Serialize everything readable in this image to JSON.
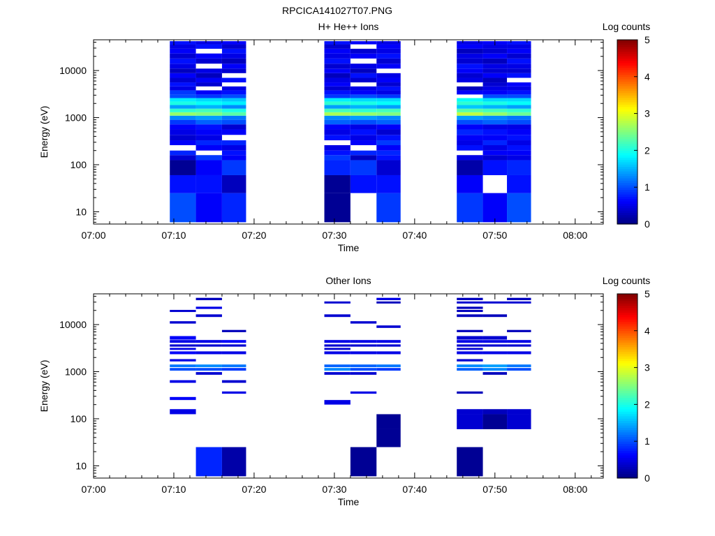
{
  "figure_title": "RPCICA141027T07.PNG",
  "chart_data": [
    {
      "type": "heatmap",
      "title": "H+ He++ Ions",
      "xlabel": "Time",
      "ylabel": "Energy (eV)",
      "y_scale": "log",
      "ylim": [
        5.5,
        45000
      ],
      "xlim": [
        "07:00",
        "08:03"
      ],
      "xlim_minutes": [
        0,
        63.5
      ],
      "x_ticks": [
        "07:00",
        "07:10",
        "07:20",
        "07:30",
        "07:40",
        "07:50",
        "08:00"
      ],
      "y_ticks": [
        "10",
        "100",
        "1000",
        "10000"
      ],
      "colorbar": {
        "label": "Log counts",
        "range": [
          0,
          5
        ],
        "ticks": [
          "0",
          "1",
          "2",
          "3",
          "4",
          "5"
        ],
        "colormap": "jet"
      },
      "time_columns": [
        {
          "start": "07:09:30",
          "end": "07:12:45"
        },
        {
          "start": "07:12:45",
          "end": "07:16:00"
        },
        {
          "start": "07:16:00",
          "end": "07:19:00"
        },
        {
          "start": "07:28:45",
          "end": "07:32:00"
        },
        {
          "start": "07:32:00",
          "end": "07:35:15"
        },
        {
          "start": "07:35:15",
          "end": "07:38:15"
        },
        {
          "start": "07:45:15",
          "end": "07:48:30"
        },
        {
          "start": "07:48:30",
          "end": "07:51:30"
        },
        {
          "start": "07:51:30",
          "end": "07:54:30"
        }
      ],
      "energy_bins_eV": [
        6.0,
        25.0,
        60.0,
        125.0,
        160.0,
        200.0,
        260.0,
        330.0,
        430.0,
        560.0,
        720.0,
        900.0,
        1100.0,
        1300.0,
        1550.0,
        1850.0,
        2200.0,
        2600.0,
        3100.0,
        3800.0,
        4600.0,
        5600.0,
        7000.0,
        8800.0,
        11000.0,
        14000.0,
        18000.0,
        23000.0,
        29000.0,
        36000.0,
        42000.0
      ],
      "log_counts": [
        [
          1.0,
          0.7,
          0.1,
          0.4,
          0.8,
          null,
          0.6,
          0.4,
          0.5,
          0.6,
          0.9,
          1.3,
          2.6,
          2.1,
          1.4,
          2.0,
          1.8,
          1.0,
          0.9,
          0.5,
          0.7,
          0.4,
          0.6,
          0.3,
          0.5,
          0.7,
          0.4,
          0.6,
          0.5,
          0.7
        ],
        [
          0.6,
          0.7,
          0.6,
          0.9,
          null,
          0.6,
          0.8,
          0.5,
          0.6,
          0.7,
          1.1,
          1.4,
          2.5,
          2.2,
          1.5,
          1.9,
          1.7,
          0.9,
          0.6,
          null,
          0.4,
          0.6,
          0.3,
          0.5,
          null,
          0.4,
          0.6,
          null,
          0.7,
          0.5
        ],
        [
          0.8,
          0.3,
          0.9,
          0.6,
          0.7,
          0.5,
          0.8,
          null,
          0.6,
          0.4,
          1.0,
          1.2,
          2.3,
          2.0,
          1.3,
          1.8,
          1.6,
          1.0,
          0.7,
          0.5,
          null,
          0.7,
          null,
          0.4,
          0.6,
          0.3,
          0.5,
          0.7,
          0.4,
          0.6
        ],
        [
          0.1,
          0.1,
          0.8,
          0.9,
          0.7,
          0.5,
          null,
          0.7,
          0.5,
          0.6,
          1.1,
          1.3,
          2.7,
          2.2,
          1.4,
          2.1,
          1.8,
          0.9,
          0.7,
          0.4,
          0.6,
          0.5,
          0.3,
          0.6,
          0.4,
          0.7,
          0.5,
          0.6,
          0.4,
          0.7
        ],
        [
          null,
          0.7,
          0.9,
          0.3,
          0.8,
          null,
          0.6,
          0.5,
          0.7,
          0.5,
          1.0,
          1.4,
          2.6,
          2.1,
          1.5,
          2.0,
          1.7,
          1.0,
          0.6,
          0.5,
          null,
          0.4,
          0.7,
          0.3,
          0.5,
          null,
          0.6,
          0.4,
          null,
          0.6
        ],
        [
          0.9,
          0.7,
          0.4,
          0.7,
          0.8,
          0.6,
          0.9,
          0.7,
          0.4,
          0.6,
          1.1,
          1.3,
          2.5,
          2.2,
          1.4,
          1.9,
          1.7,
          0.9,
          0.5,
          0.7,
          0.4,
          0.6,
          0.5,
          null,
          0.6,
          0.4,
          0.7,
          0.5,
          0.6,
          0.5
        ],
        [
          0.9,
          0.6,
          0.2,
          0.5,
          null,
          0.7,
          0.5,
          0.6,
          0.8,
          0.6,
          1.0,
          1.4,
          2.8,
          2.3,
          1.6,
          2.1,
          1.9,
          null,
          0.6,
          0.3,
          null,
          0.5,
          0.4,
          0.6,
          0.7,
          0.4,
          0.5,
          0.3,
          0.6,
          0.5
        ],
        [
          0.6,
          null,
          0.7,
          0.4,
          0.6,
          0.5,
          0.8,
          0.6,
          0.7,
          0.5,
          1.1,
          1.3,
          2.6,
          2.2,
          1.5,
          2.0,
          1.7,
          1.0,
          0.6,
          0.5,
          0.4,
          0.3,
          0.6,
          0.4,
          0.5,
          0.3,
          0.6,
          0.4,
          0.5,
          0.6
        ],
        [
          1.0,
          0.7,
          0.8,
          0.5,
          0.6,
          0.7,
          0.5,
          0.7,
          0.6,
          0.5,
          1.0,
          1.2,
          2.4,
          2.1,
          1.4,
          1.9,
          1.7,
          1.0,
          0.7,
          0.5,
          0.6,
          null,
          0.7,
          0.4,
          0.5,
          0.7,
          0.4,
          0.6,
          0.5,
          0.7
        ]
      ]
    },
    {
      "type": "heatmap",
      "title": "Other Ions",
      "xlabel": "Time",
      "ylabel": "Energy (eV)",
      "y_scale": "log",
      "ylim": [
        5.5,
        45000
      ],
      "xlim": [
        "07:00",
        "08:03"
      ],
      "xlim_minutes": [
        0,
        63.5
      ],
      "x_ticks": [
        "07:00",
        "07:10",
        "07:20",
        "07:30",
        "07:40",
        "07:50",
        "08:00"
      ],
      "y_ticks": [
        "10",
        "100",
        "1000",
        "10000"
      ],
      "colorbar": {
        "label": "Log counts",
        "range": [
          0,
          5
        ],
        "ticks": [
          "0",
          "1",
          "2",
          "3",
          "4",
          "5"
        ],
        "colormap": "jet"
      },
      "time_columns": [
        {
          "start": "07:09:30",
          "end": "07:12:45"
        },
        {
          "start": "07:12:45",
          "end": "07:16:00"
        },
        {
          "start": "07:16:00",
          "end": "07:19:00"
        },
        {
          "start": "07:28:45",
          "end": "07:32:00"
        },
        {
          "start": "07:32:00",
          "end": "07:35:15"
        },
        {
          "start": "07:35:15",
          "end": "07:38:15"
        },
        {
          "start": "07:45:15",
          "end": "07:48:30"
        },
        {
          "start": "07:48:30",
          "end": "07:51:30"
        },
        {
          "start": "07:51:30",
          "end": "07:54:30"
        }
      ],
      "energy_bands_eV": [
        [
          6,
          25
        ],
        [
          25,
          60
        ],
        [
          60,
          125
        ],
        [
          125,
          160
        ],
        [
          200,
          250
        ],
        [
          250,
          290
        ],
        [
          340,
          380
        ],
        [
          580,
          660
        ],
        [
          860,
          980
        ],
        [
          1050,
          1200
        ],
        [
          1250,
          1420
        ],
        [
          1650,
          1850
        ],
        [
          2350,
          2700
        ],
        [
          2900,
          3200
        ],
        [
          3400,
          3800
        ],
        [
          4100,
          4700
        ],
        [
          4800,
          5700
        ],
        [
          6900,
          7700
        ],
        [
          8500,
          9600
        ],
        [
          10500,
          11800
        ],
        [
          14500,
          16500
        ],
        [
          18500,
          20500
        ],
        [
          21500,
          24000
        ],
        [
          28000,
          31000
        ],
        [
          33000,
          37000
        ]
      ],
      "log_counts": [
        [
          null,
          null,
          null,
          0.5,
          null,
          0.6,
          null,
          0.5,
          null,
          1.0,
          1.2,
          0.5,
          0.6,
          0.5,
          0.4,
          0.5,
          0.6,
          null,
          null,
          0.4,
          null,
          0.4,
          null,
          null,
          null
        ],
        [
          0.8,
          null,
          null,
          null,
          null,
          null,
          null,
          null,
          0.4,
          1.0,
          1.3,
          null,
          0.5,
          null,
          0.4,
          0.5,
          null,
          null,
          null,
          null,
          0.4,
          null,
          0.5,
          null,
          0.3
        ],
        [
          0.2,
          null,
          null,
          null,
          null,
          null,
          0.5,
          0.4,
          null,
          0.9,
          1.2,
          null,
          0.5,
          null,
          0.4,
          0.6,
          null,
          0.3,
          null,
          null,
          null,
          null,
          null,
          null,
          null
        ],
        [
          null,
          null,
          null,
          null,
          0.5,
          null,
          null,
          null,
          0.4,
          1.3,
          1.1,
          null,
          0.5,
          0.4,
          0.4,
          0.5,
          null,
          null,
          null,
          null,
          0.4,
          null,
          null,
          0.4,
          null
        ],
        [
          0.1,
          null,
          null,
          null,
          null,
          null,
          0.5,
          null,
          0.4,
          1.0,
          1.1,
          null,
          0.5,
          null,
          0.4,
          0.5,
          null,
          null,
          null,
          0.4,
          null,
          null,
          null,
          null,
          null
        ],
        [
          null,
          0.1,
          0.1,
          null,
          null,
          null,
          null,
          null,
          null,
          0.9,
          1.2,
          null,
          0.5,
          null,
          0.4,
          0.5,
          null,
          null,
          0.4,
          null,
          null,
          null,
          null,
          0.3,
          0.5
        ],
        [
          0.1,
          null,
          0.4,
          0.4,
          null,
          null,
          0.3,
          null,
          null,
          1.1,
          1.3,
          0.4,
          0.5,
          0.4,
          0.4,
          0.5,
          0.4,
          0.3,
          null,
          null,
          0.3,
          0.3,
          0.3,
          0.4,
          0.3
        ],
        [
          null,
          null,
          0.1,
          0.3,
          null,
          null,
          null,
          null,
          0.3,
          1.3,
          1.4,
          null,
          0.5,
          null,
          0.4,
          0.5,
          0.4,
          null,
          null,
          null,
          0.3,
          null,
          null,
          0.4,
          null
        ],
        [
          null,
          null,
          0.4,
          0.4,
          null,
          null,
          null,
          null,
          null,
          1.0,
          1.2,
          null,
          0.5,
          null,
          0.4,
          0.5,
          null,
          0.3,
          null,
          null,
          null,
          null,
          null,
          0.4,
          0.3
        ]
      ]
    }
  ]
}
